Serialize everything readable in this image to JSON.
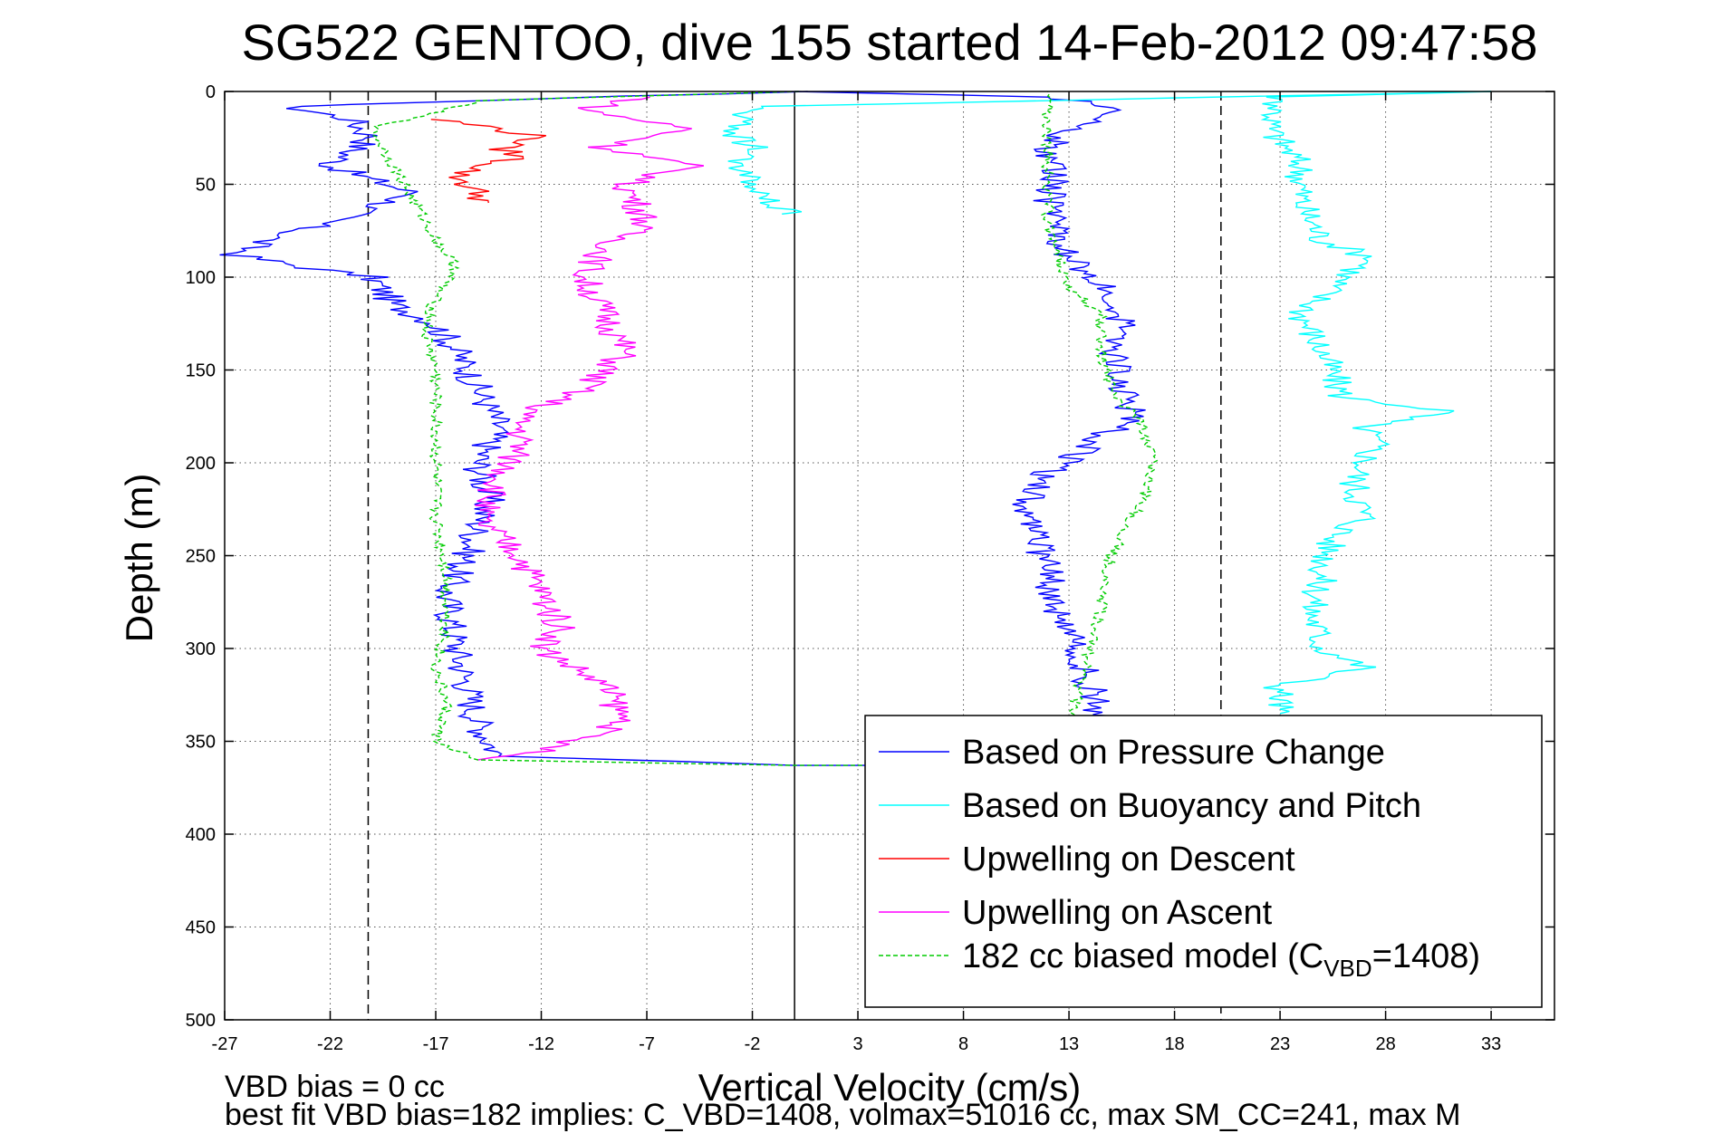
{
  "chart_data": {
    "type": "line",
    "title": "SG522 GENTOO, dive 155 started 14-Feb-2012 09:47:58",
    "xlabel": "Vertical Velocity (cm/s)",
    "ylabel": "Depth (m)",
    "xlim": [
      -27,
      36
    ],
    "ylim": [
      0,
      500
    ],
    "y_reversed": true,
    "grid": true,
    "xticks": [
      -27,
      -22,
      -17,
      -12,
      -7,
      -2,
      3,
      8,
      13,
      18,
      23,
      28,
      33
    ],
    "yticks": [
      0,
      50,
      100,
      150,
      200,
      250,
      300,
      350,
      400,
      450,
      500
    ],
    "reference_lines": [
      {
        "x": -20.2,
        "style": "dashed"
      },
      {
        "x": 0,
        "style": "solid"
      },
      {
        "x": 20.2,
        "style": "dashed"
      }
    ],
    "legend_position": "bottom-right",
    "footnotes": [
      "VBD bias = 0 cc",
      "best fit VBD bias=182 implies: C_VBD=1408, volmax=51016 cc, max SM_CC=241, max M"
    ],
    "series": [
      {
        "name": "Based on Pressure Change",
        "color": "#0000ff",
        "points": [
          [
            0,
            0
          ],
          [
            -15,
            5
          ],
          [
            -24,
            8
          ],
          [
            -21,
            15
          ],
          [
            -20,
            25
          ],
          [
            -22,
            40
          ],
          [
            -18,
            55
          ],
          [
            -22,
            70
          ],
          [
            -25,
            80
          ],
          [
            -26.5,
            88
          ],
          [
            -23,
            95
          ],
          [
            -20,
            100
          ],
          [
            -19,
            115
          ],
          [
            -17,
            125
          ],
          [
            -16,
            140
          ],
          [
            -15,
            160
          ],
          [
            -14,
            180
          ],
          [
            -15,
            200
          ],
          [
            -14.5,
            220
          ],
          [
            -15.5,
            250
          ],
          [
            -16.5,
            270
          ],
          [
            -16,
            300
          ],
          [
            -15.5,
            320
          ],
          [
            -15,
            340
          ],
          [
            -14,
            358
          ],
          [
            -5,
            361
          ],
          [
            0,
            363
          ],
          [
            13,
            363
          ],
          [
            15,
            350
          ],
          [
            14,
            320
          ],
          [
            13.5,
            300
          ],
          [
            12.5,
            280
          ],
          [
            12,
            260
          ],
          [
            11.5,
            240
          ],
          [
            11,
            220
          ],
          [
            12,
            205
          ],
          [
            14,
            190
          ],
          [
            16,
            175
          ],
          [
            15.5,
            160
          ],
          [
            15,
            140
          ],
          [
            15.5,
            120
          ],
          [
            15,
            105
          ],
          [
            13,
            90
          ],
          [
            12.5,
            75
          ],
          [
            12,
            60
          ],
          [
            12.5,
            45
          ],
          [
            12,
            30
          ],
          [
            13,
            20
          ],
          [
            16,
            10
          ],
          [
            12,
            3
          ],
          [
            0,
            0
          ]
        ]
      },
      {
        "name": "Based on Buoyancy and Pitch",
        "color": "#00ffff",
        "points": [
          [
            0,
            66
          ],
          [
            -1,
            60
          ],
          [
            -2,
            50
          ],
          [
            -2.5,
            40
          ],
          [
            -2,
            30
          ],
          [
            -3,
            20
          ],
          [
            -2,
            10
          ],
          [
            -1,
            8
          ],
          [
            33,
            0
          ],
          [
            23,
            3
          ],
          [
            22.5,
            20
          ],
          [
            24,
            40
          ],
          [
            24,
            60
          ],
          [
            25,
            80
          ],
          [
            27.5,
            90
          ],
          [
            26,
            100
          ],
          [
            24,
            120
          ],
          [
            25,
            140
          ],
          [
            26,
            165
          ],
          [
            31,
            172
          ],
          [
            27,
            180
          ],
          [
            27.5,
            190
          ],
          [
            27,
            200
          ],
          [
            26.5,
            210
          ],
          [
            27,
            230
          ],
          [
            25.5,
            240
          ],
          [
            25,
            260
          ],
          [
            24.5,
            280
          ],
          [
            25,
            300
          ],
          [
            27,
            310
          ],
          [
            23,
            320
          ],
          [
            23,
            335
          ]
        ]
      },
      {
        "name": "Upwelling on Descent",
        "color": "#ff0000",
        "points": [
          [
            -17,
            15
          ],
          [
            -14,
            20
          ],
          [
            -12,
            25
          ],
          [
            -14,
            30
          ],
          [
            -13,
            35
          ],
          [
            -16,
            45
          ],
          [
            -15,
            55
          ],
          [
            -14.5,
            60
          ]
        ]
      },
      {
        "name": "Upwelling on Ascent",
        "color": "#ff00ff",
        "points": [
          [
            -7,
            3
          ],
          [
            -10,
            10
          ],
          [
            -5,
            20
          ],
          [
            -9,
            30
          ],
          [
            -5,
            40
          ],
          [
            -8,
            50
          ],
          [
            -7,
            70
          ],
          [
            -9,
            85
          ],
          [
            -10,
            100
          ],
          [
            -9,
            120
          ],
          [
            -8,
            140
          ],
          [
            -10,
            160
          ],
          [
            -13,
            175
          ],
          [
            -13,
            190
          ],
          [
            -14,
            210
          ],
          [
            -15,
            230
          ],
          [
            -13,
            250
          ],
          [
            -12,
            270
          ],
          [
            -11,
            290
          ],
          [
            -12,
            300
          ],
          [
            -9,
            320
          ],
          [
            -8,
            340
          ],
          [
            -12,
            355
          ],
          [
            -15,
            360
          ]
        ]
      },
      {
        "name": "182 cc biased model (C_VBD=1408)",
        "color": "#00cc00",
        "dashed": true,
        "points": [
          [
            0,
            0
          ],
          [
            -15,
            5
          ],
          [
            -20,
            20
          ],
          [
            -19,
            40
          ],
          [
            -18,
            60
          ],
          [
            -17,
            80
          ],
          [
            -16,
            95
          ],
          [
            -17,
            110
          ],
          [
            -17.5,
            130
          ],
          [
            -17,
            150
          ],
          [
            -17,
            170
          ],
          [
            -17,
            200
          ],
          [
            -17,
            230
          ],
          [
            -16.5,
            260
          ],
          [
            -16.5,
            290
          ],
          [
            -17,
            310
          ],
          [
            -16.5,
            330
          ],
          [
            -17,
            350
          ],
          [
            -15,
            360
          ],
          [
            0,
            363
          ],
          [
            13,
            363
          ],
          [
            13,
            340
          ],
          [
            13.5,
            320
          ],
          [
            14,
            300
          ],
          [
            14.5,
            280
          ],
          [
            15,
            250
          ],
          [
            16.5,
            220
          ],
          [
            17,
            200
          ],
          [
            16.5,
            180
          ],
          [
            15,
            160
          ],
          [
            14.5,
            140
          ],
          [
            14.5,
            120
          ],
          [
            13,
            105
          ],
          [
            12.5,
            90
          ],
          [
            12,
            70
          ],
          [
            12,
            50
          ],
          [
            12,
            30
          ],
          [
            12,
            10
          ],
          [
            12,
            0
          ]
        ]
      }
    ]
  }
}
